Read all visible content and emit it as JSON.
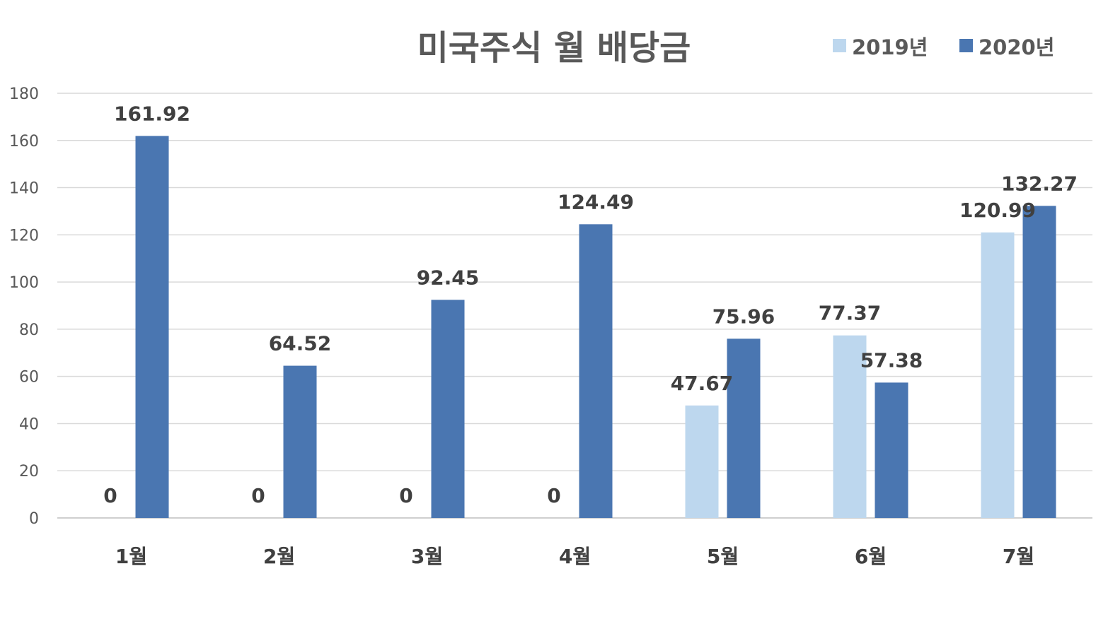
{
  "chart_data": {
    "type": "bar",
    "title": "미국주식 월 배당금",
    "xlabel": "",
    "ylabel": "",
    "ylim": [
      0,
      180
    ],
    "yticks": [
      0,
      20,
      40,
      60,
      80,
      100,
      120,
      140,
      160,
      180
    ],
    "categories": [
      "1월",
      "2월",
      "3월",
      "4월",
      "5월",
      "6월",
      "7월"
    ],
    "series": [
      {
        "name": "2019년",
        "color": "#bdd7ee",
        "values": [
          0,
          0,
          0,
          0,
          47.67,
          77.37,
          120.99
        ]
      },
      {
        "name": "2020년",
        "color": "#4a76b1",
        "values": [
          161.92,
          64.52,
          92.45,
          124.49,
          75.96,
          57.38,
          132.27
        ]
      }
    ],
    "grid": true,
    "legend_position": "top-right",
    "data_labels": true
  }
}
